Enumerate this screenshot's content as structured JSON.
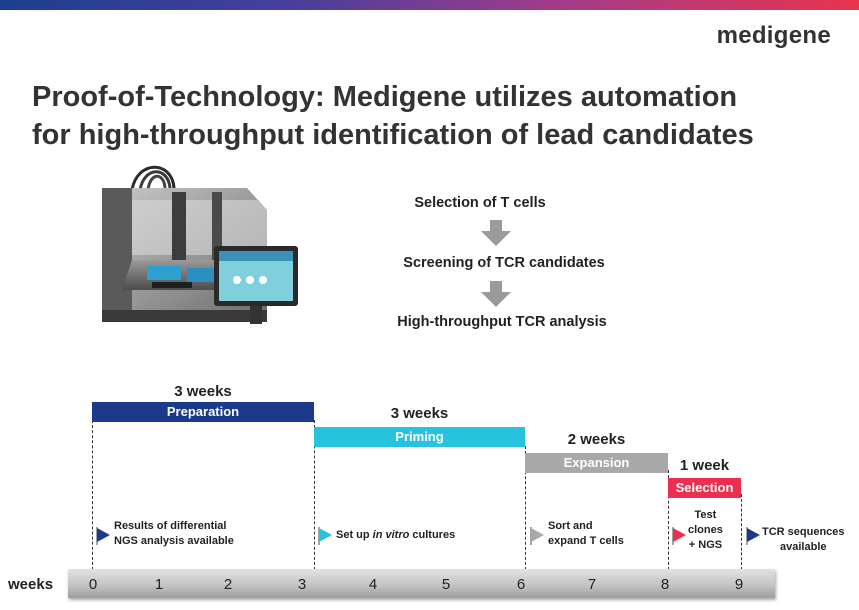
{
  "brand": "medigene",
  "title_line1": "Proof-of-Technology: Medigene utilizes automation",
  "title_line2": "for high-throughput identification of lead candidates",
  "steps": [
    "Selection of T cells",
    "Screening of TCR candidates",
    "High-throughput TCR analysis"
  ],
  "phases": [
    {
      "duration": "3 weeks",
      "name": "Preparation",
      "color": "#1b3a8c"
    },
    {
      "duration": "3 weeks",
      "name": "Priming",
      "color": "#27c2dd"
    },
    {
      "duration": "2 weeks",
      "name": "Expansion",
      "color": "#a9a9a9"
    },
    {
      "duration": "1 week",
      "name": "Selection",
      "color": "#ec2f4e"
    }
  ],
  "milestones": [
    {
      "l1": "Results of differential",
      "l2": "NGS analysis available",
      "l3": "",
      "color": "#1b3a8c"
    },
    {
      "l1": "Set up ",
      "l1_em": "in vitro",
      "l1_end": " cultures",
      "color": "#27c2dd"
    },
    {
      "l1": "Sort and",
      "l2": "expand T cells",
      "color": "#a9a9a9"
    },
    {
      "l1": "Test",
      "l2": "clones",
      "l3": "+ NGS",
      "color": "#ec2f4e"
    },
    {
      "l1": "TCR sequences",
      "l2": "available",
      "color": "#1b3a8c"
    }
  ],
  "axis": {
    "label": "weeks",
    "ticks": [
      "0",
      "1",
      "2",
      "3",
      "4",
      "5",
      "6",
      "7",
      "8",
      "9"
    ]
  }
}
